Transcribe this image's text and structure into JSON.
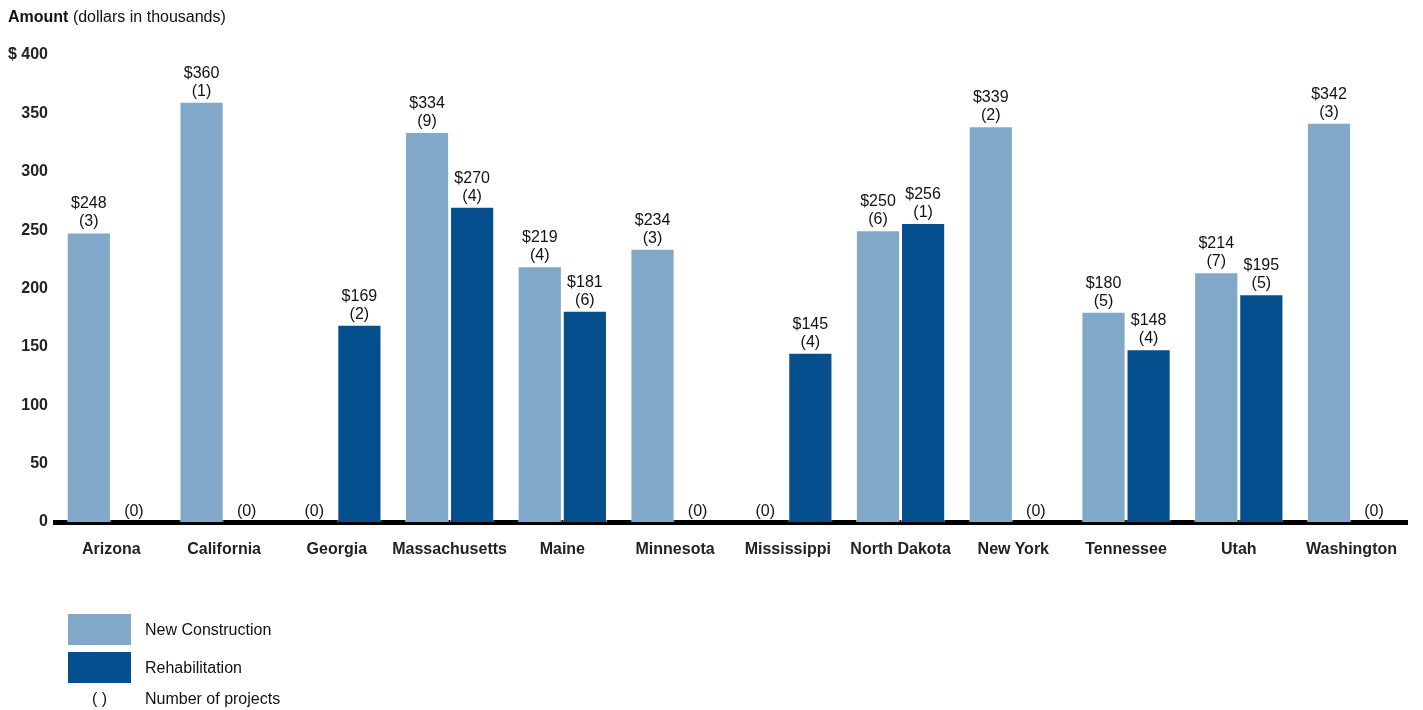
{
  "chart_data": {
    "type": "bar",
    "ylabel": "Amount (dollars in thousands)",
    "categories": [
      "Arizona",
      "California",
      "Georgia",
      "Massachusetts",
      "Maine",
      "Minnesota",
      "Mississippi",
      "North Dakota",
      "New York",
      "Tennessee",
      "Utah",
      "Washington"
    ],
    "series": [
      {
        "name": "New Construction",
        "color": "#82a8c9",
        "values": [
          248,
          360,
          null,
          334,
          219,
          234,
          null,
          250,
          339,
          180,
          214,
          342
        ],
        "value_labels": [
          "$248\n(3)",
          "$360\n(1)",
          "(0)",
          "$334\n(9)",
          "$219\n(4)",
          "$234\n(3)",
          "(0)",
          "$250\n(6)",
          "$339\n(2)",
          "$180\n(5)",
          "$214\n(7)",
          "$342\n(3)"
        ]
      },
      {
        "name": "Rehabilitation",
        "color": "#064f8f",
        "values": [
          null,
          null,
          169,
          270,
          181,
          null,
          145,
          256,
          null,
          148,
          195,
          null
        ],
        "value_labels": [
          "(0)",
          "(0)",
          "$169\n(2)",
          "$270\n(4)",
          "$181\n(6)",
          "(0)",
          "$145\n(4)",
          "$256\n(1)",
          "(0)",
          "$148\n(4)",
          "$195\n(5)",
          "(0)"
        ]
      }
    ],
    "ylim": [
      0,
      400
    ],
    "yticks": [
      0,
      50,
      100,
      150,
      200,
      250,
      300,
      350,
      {
        "value": 400,
        "label": "$ 400"
      }
    ],
    "grid": false,
    "legend": "bottom left",
    "annotations": [
      "( )",
      "Number of projects"
    ]
  }
}
